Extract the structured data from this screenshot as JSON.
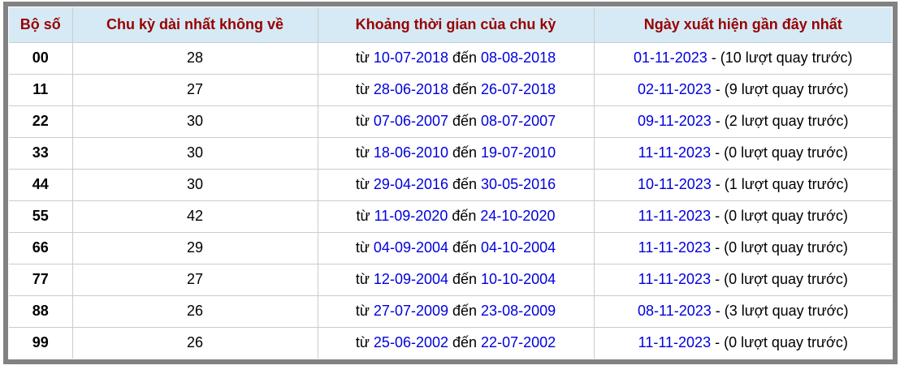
{
  "colors": {
    "header_bg": "#d5eaf5",
    "header_text": "#990000",
    "link": "#0000dd",
    "outer_border": "#828282",
    "cell_border": "#cccccc",
    "row_text": "#000000",
    "page_bg": "#ffffff"
  },
  "table": {
    "columns": [
      {
        "label": "Bộ số"
      },
      {
        "label": "Chu kỳ dài nhất không về"
      },
      {
        "label": "Khoảng thời gian của chu kỳ"
      },
      {
        "label": "Ngày xuất hiện gần đây nhất"
      }
    ],
    "range_from_label": "từ",
    "range_to_label": "đến",
    "rows": [
      {
        "pair": "00",
        "longest_cycle": "28",
        "from_date": "10-07-2018",
        "to_date": "08-08-2018",
        "last_date": "01-11-2023",
        "last_note": "- (10 lượt quay trước)"
      },
      {
        "pair": "11",
        "longest_cycle": "27",
        "from_date": "28-06-2018",
        "to_date": "26-07-2018",
        "last_date": "02-11-2023",
        "last_note": "- (9 lượt quay trước)"
      },
      {
        "pair": "22",
        "longest_cycle": "30",
        "from_date": "07-06-2007",
        "to_date": "08-07-2007",
        "last_date": "09-11-2023",
        "last_note": "- (2 lượt quay trước)"
      },
      {
        "pair": "33",
        "longest_cycle": "30",
        "from_date": "18-06-2010",
        "to_date": "19-07-2010",
        "last_date": "11-11-2023",
        "last_note": "- (0 lượt quay trước)"
      },
      {
        "pair": "44",
        "longest_cycle": "30",
        "from_date": "29-04-2016",
        "to_date": "30-05-2016",
        "last_date": "10-11-2023",
        "last_note": "- (1 lượt quay trước)"
      },
      {
        "pair": "55",
        "longest_cycle": "42",
        "from_date": "11-09-2020",
        "to_date": "24-10-2020",
        "last_date": "11-11-2023",
        "last_note": "- (0 lượt quay trước)"
      },
      {
        "pair": "66",
        "longest_cycle": "29",
        "from_date": "04-09-2004",
        "to_date": "04-10-2004",
        "last_date": "11-11-2023",
        "last_note": "- (0 lượt quay trước)"
      },
      {
        "pair": "77",
        "longest_cycle": "27",
        "from_date": "12-09-2004",
        "to_date": "10-10-2004",
        "last_date": "11-11-2023",
        "last_note": "- (0 lượt quay trước)"
      },
      {
        "pair": "88",
        "longest_cycle": "26",
        "from_date": "27-07-2009",
        "to_date": "23-08-2009",
        "last_date": "08-11-2023",
        "last_note": "- (3 lượt quay trước)"
      },
      {
        "pair": "99",
        "longest_cycle": "26",
        "from_date": "25-06-2002",
        "to_date": "22-07-2002",
        "last_date": "11-11-2023",
        "last_note": "- (0 lượt quay trước)"
      }
    ]
  }
}
